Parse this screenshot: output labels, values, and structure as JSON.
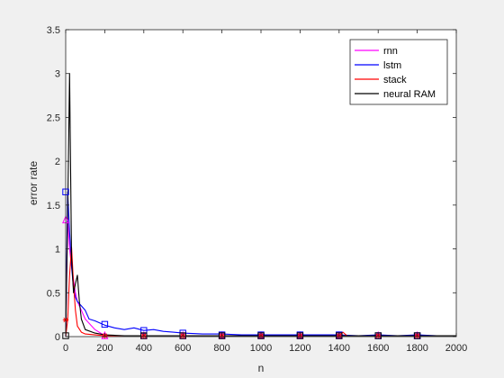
{
  "chart_data": {
    "type": "line",
    "xlabel": "n",
    "ylabel": "error rate",
    "xlim": [
      0,
      2000
    ],
    "ylim": [
      0,
      3.5
    ],
    "xticks": [
      0,
      200,
      400,
      600,
      800,
      1000,
      1200,
      1400,
      1600,
      1800,
      2000
    ],
    "yticks": [
      0,
      0.5,
      1,
      1.5,
      2,
      2.5,
      3,
      3.5
    ],
    "grid": false,
    "legend_position": "top-right",
    "series": [
      {
        "name": "rnn",
        "color": "#ff00ff",
        "marker": "triangle",
        "x": [
          0,
          10,
          20,
          30,
          40,
          50,
          60,
          80,
          100,
          150,
          200,
          300,
          400,
          600,
          800,
          1000,
          1200,
          1400,
          1600,
          1800,
          2000
        ],
        "y": [
          0,
          1.35,
          1.0,
          0.8,
          0.65,
          0.5,
          0.4,
          0.3,
          0.2,
          0.08,
          0.01,
          0.01,
          0.01,
          0.01,
          0.01,
          0.01,
          0.01,
          0.01,
          0.01,
          0.01,
          0.01
        ],
        "marker_x": [
          0,
          200,
          400,
          600,
          800,
          1000,
          1200,
          1400,
          1600,
          1800
        ],
        "marker_y": [
          1.33,
          0.01,
          0.01,
          0.01,
          0.01,
          0.01,
          0.01,
          0.01,
          0.01,
          0.01
        ]
      },
      {
        "name": "lstm",
        "color": "#0000ff",
        "marker": "square",
        "x": [
          0,
          10,
          20,
          30,
          40,
          50,
          60,
          80,
          100,
          120,
          150,
          180,
          200,
          250,
          300,
          350,
          400,
          450,
          500,
          550,
          600,
          700,
          800,
          900,
          1000,
          1100,
          1200,
          1300,
          1400,
          1500,
          1600,
          1700,
          1800,
          1900,
          2000
        ],
        "y": [
          0,
          1.65,
          1.2,
          0.8,
          0.55,
          0.45,
          0.4,
          0.35,
          0.3,
          0.2,
          0.18,
          0.15,
          0.13,
          0.1,
          0.08,
          0.1,
          0.07,
          0.08,
          0.06,
          0.05,
          0.04,
          0.03,
          0.03,
          0.02,
          0.02,
          0.02,
          0.02,
          0.02,
          0.02,
          0.01,
          0.02,
          0.01,
          0.02,
          0.01,
          0.01
        ],
        "marker_x": [
          0,
          200,
          400,
          600,
          800,
          1000,
          1200,
          1400,
          1600,
          1800
        ],
        "marker_y": [
          1.65,
          0.14,
          0.07,
          0.04,
          0.02,
          0.02,
          0.02,
          0.02,
          0.01,
          0.01
        ]
      },
      {
        "name": "stack",
        "color": "#ff0000",
        "marker": "asterisk",
        "x": [
          0,
          10,
          20,
          30,
          40,
          50,
          60,
          80,
          100,
          150,
          200,
          300,
          400,
          600,
          800,
          1000,
          1200,
          1400,
          1420,
          1440,
          1600,
          1800,
          2000
        ],
        "y": [
          0,
          0.19,
          0.7,
          1.02,
          0.6,
          0.3,
          0.12,
          0.05,
          0.03,
          0.02,
          0.01,
          0.01,
          0.01,
          0.01,
          0.01,
          0.01,
          0.01,
          0.01,
          0.05,
          0.01,
          0.01,
          0.01,
          0.01
        ],
        "marker_x": [
          0,
          200,
          400,
          600,
          800,
          1000,
          1200,
          1400,
          1600,
          1800
        ],
        "marker_y": [
          0.19,
          0.01,
          0.01,
          0.01,
          0.01,
          0.01,
          0.01,
          0.01,
          0.01,
          0.01
        ]
      },
      {
        "name": "neural RAM",
        "color": "#000000",
        "marker": "square",
        "x": [
          0,
          10,
          20,
          30,
          40,
          50,
          60,
          70,
          80,
          100,
          150,
          200,
          300,
          400,
          600,
          800,
          1000,
          1200,
          1400,
          1600,
          1800,
          2000
        ],
        "y": [
          0,
          1.4,
          3.0,
          0.9,
          0.5,
          0.6,
          0.7,
          0.4,
          0.2,
          0.08,
          0.04,
          0.02,
          0.01,
          0.01,
          0.01,
          0.01,
          0.01,
          0.01,
          0.01,
          0.01,
          0.01,
          0.01
        ],
        "marker_x": [
          0,
          400,
          600,
          800,
          1000,
          1200,
          1400,
          1600,
          1800
        ],
        "marker_y": [
          0.01,
          0.01,
          0.01,
          0.01,
          0.01,
          0.01,
          0.01,
          0.01,
          0.01
        ]
      }
    ]
  }
}
